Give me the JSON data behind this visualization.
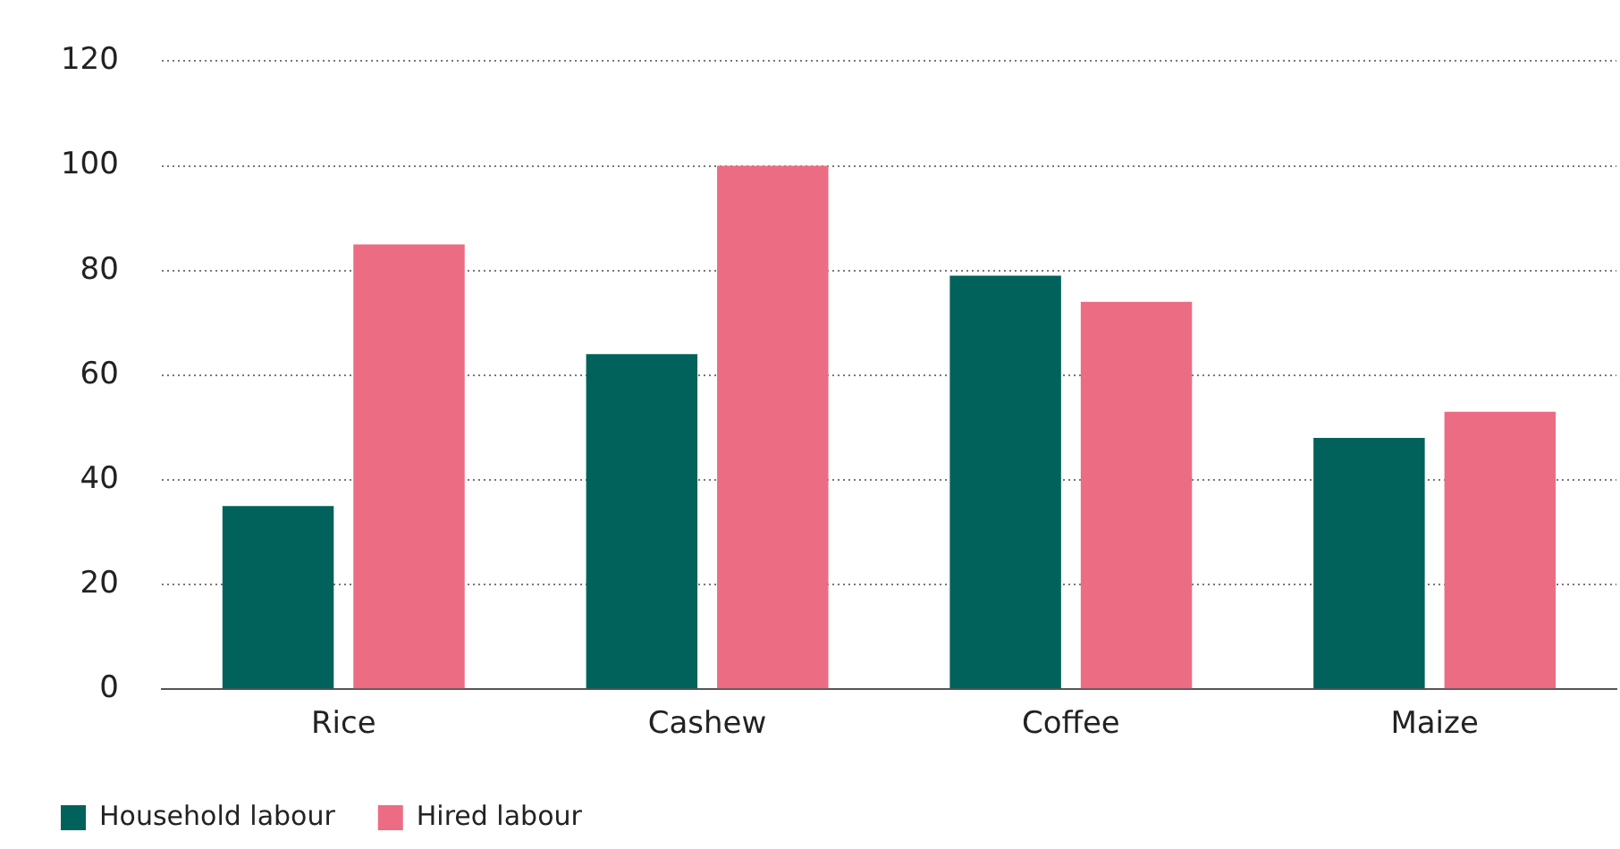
{
  "chart_data": {
    "type": "bar",
    "categories": [
      "Rice",
      "Cashew",
      "Coffee",
      "Maize"
    ],
    "series": [
      {
        "name": "Household labour",
        "color": "#00625a",
        "values": [
          35,
          64,
          79,
          48
        ]
      },
      {
        "name": "Hired labour",
        "color": "#ec6c84",
        "values": [
          85,
          100,
          74,
          53
        ]
      }
    ],
    "ylim": [
      0,
      120
    ],
    "yticks": [
      0,
      20,
      40,
      60,
      80,
      100,
      120
    ],
    "grid": "y",
    "legend": "bottom left"
  }
}
